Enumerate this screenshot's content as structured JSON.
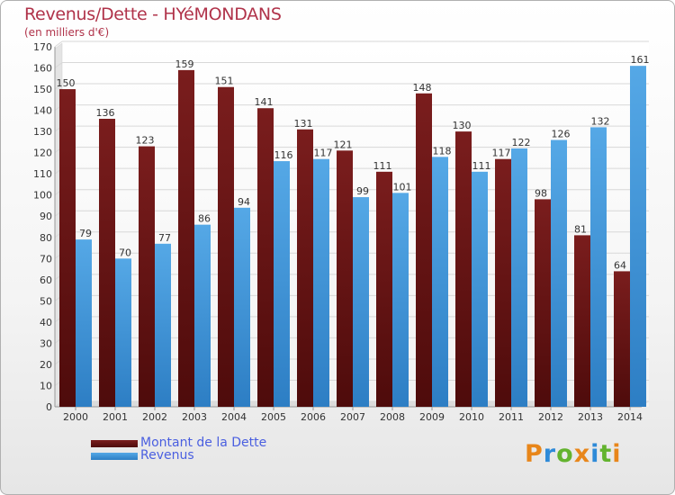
{
  "header": {
    "title": "Revenus/Dette - HYéMONDANS",
    "subtitle": "(en milliers d'€)"
  },
  "legend": {
    "dette_label": "Montant de la Dette",
    "revenus_label": "Revenus"
  },
  "logo": {
    "text": "Proxiti",
    "letters": [
      {
        "char": "P",
        "color": "#e8861a"
      },
      {
        "char": "r",
        "color": "#2e8ad8"
      },
      {
        "char": "o",
        "color": "#63b32e"
      },
      {
        "char": "x",
        "color": "#e8861a"
      },
      {
        "char": "i",
        "color": "#2e8ad8"
      },
      {
        "char": "t",
        "color": "#63b32e"
      },
      {
        "char": "i",
        "color": "#e8861a"
      }
    ]
  },
  "colors": {
    "dette": "#7a1d1d",
    "dette_dark": "#4e0b0b",
    "revenus": "#55a8e6",
    "revenus_dark": "#2d7ec4",
    "title": "#b0334a",
    "legend_text": "#4a5fe0",
    "grid": "#d8d8d8",
    "axis_text": "#333333"
  },
  "chart_data": {
    "type": "bar",
    "title": "Revenus/Dette - HYéMONDANS",
    "ylabel": "(en milliers d'€)",
    "xlabel": "",
    "ylim": [
      0,
      170
    ],
    "ytick_step": 10,
    "categories": [
      "2000",
      "2001",
      "2002",
      "2003",
      "2004",
      "2005",
      "2006",
      "2007",
      "2008",
      "2009",
      "2010",
      "2011",
      "2012",
      "2013",
      "2014"
    ],
    "series": [
      {
        "name": "Montant de la Dette",
        "values": [
          150,
          136,
          123,
          159,
          151,
          141,
          131,
          121,
          111,
          148,
          130,
          117,
          98,
          81,
          64
        ]
      },
      {
        "name": "Revenus",
        "values": [
          79,
          70,
          77,
          86,
          94,
          116,
          117,
          99,
          101,
          118,
          111,
          122,
          126,
          132,
          161
        ]
      }
    ]
  }
}
